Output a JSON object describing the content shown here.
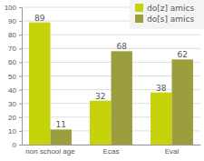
{
  "chart_data": {
    "type": "bar",
    "categories": [
      "non school age",
      "Ecas",
      "Eval"
    ],
    "series": [
      {
        "name": "do[z] amics",
        "color": "#c6d30a",
        "values": [
          89,
          32,
          38
        ]
      },
      {
        "name": "do[s] amics",
        "color": "#9c9d3c",
        "values": [
          11,
          68,
          62
        ]
      }
    ],
    "ylim": [
      0,
      100
    ],
    "yticks": [
      0,
      10,
      20,
      30,
      40,
      50,
      60,
      70,
      80,
      90,
      100
    ],
    "grid": true,
    "data_labels": true,
    "legend": "top-right"
  }
}
